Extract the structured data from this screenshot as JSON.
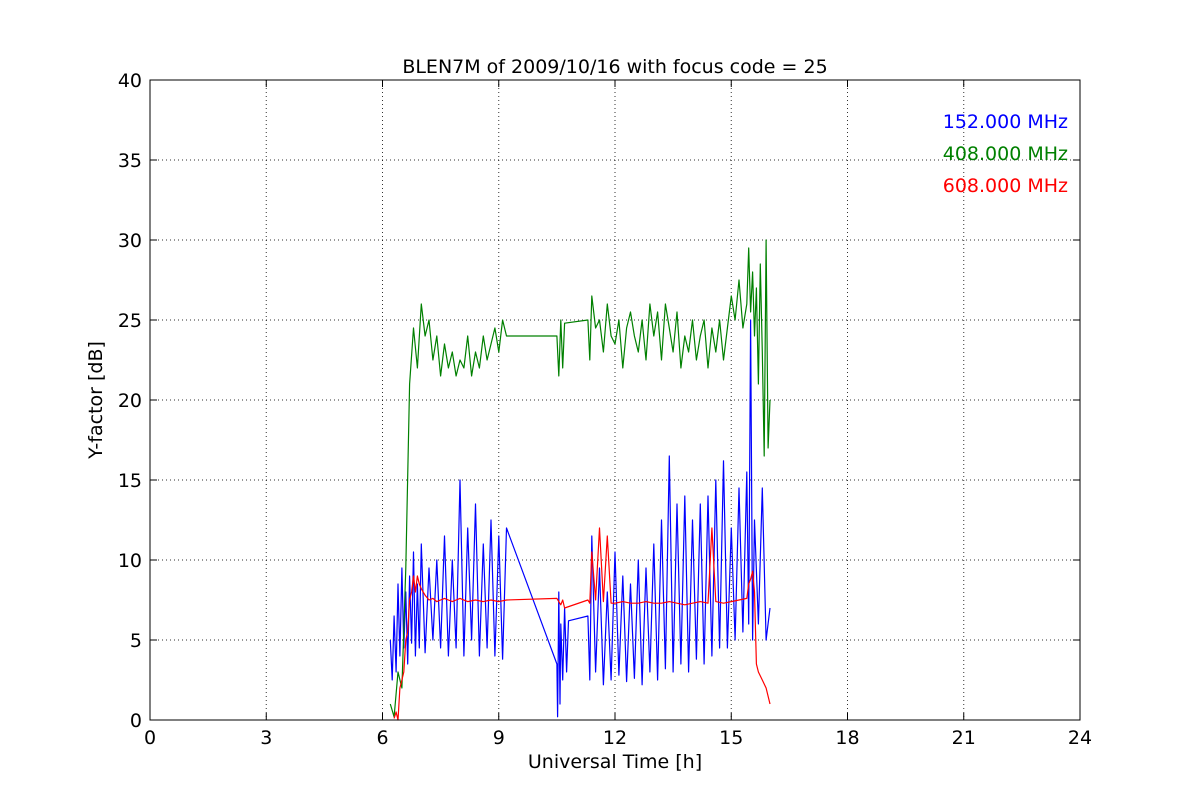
{
  "chart_data": {
    "type": "line",
    "title": "BLEN7M of 2009/10/16 with focus code = 25",
    "xlabel": "Universal Time [h]",
    "ylabel": "Y-factor [dB]",
    "xlim": [
      0,
      24
    ],
    "ylim": [
      0,
      40
    ],
    "xticks": [
      0,
      3,
      6,
      9,
      12,
      15,
      18,
      21,
      24
    ],
    "yticks": [
      0,
      5,
      10,
      15,
      20,
      25,
      30,
      35,
      40
    ],
    "grid": true,
    "legend_placement": "top-right",
    "series": [
      {
        "name": "152.000 MHz",
        "color": "#0000ff",
        "x": [
          6.2,
          6.25,
          6.3,
          6.35,
          6.4,
          6.45,
          6.5,
          6.55,
          6.6,
          6.65,
          6.7,
          6.75,
          6.8,
          6.85,
          6.9,
          6.95,
          7.0,
          7.1,
          7.2,
          7.3,
          7.4,
          7.5,
          7.6,
          7.7,
          7.8,
          7.9,
          8.0,
          8.1,
          8.2,
          8.3,
          8.4,
          8.5,
          8.6,
          8.7,
          8.8,
          8.9,
          9.0,
          9.1,
          9.2,
          10.5,
          10.52,
          10.55,
          10.58,
          10.6,
          10.65,
          10.7,
          10.75,
          10.8,
          11.3,
          11.35,
          11.4,
          11.5,
          11.6,
          11.7,
          11.8,
          11.9,
          12.0,
          12.1,
          12.2,
          12.3,
          12.4,
          12.5,
          12.6,
          12.7,
          12.8,
          12.9,
          13.0,
          13.1,
          13.2,
          13.3,
          13.4,
          13.5,
          13.6,
          13.7,
          13.8,
          13.9,
          14.0,
          14.1,
          14.2,
          14.3,
          14.4,
          14.5,
          14.6,
          14.7,
          14.8,
          14.9,
          15.0,
          15.1,
          15.2,
          15.3,
          15.4,
          15.45,
          15.5,
          15.55,
          15.6,
          15.7,
          15.8,
          15.9,
          16.0
        ],
        "values": [
          5.0,
          2.5,
          6.5,
          3.0,
          8.5,
          4.0,
          9.5,
          4.5,
          8.0,
          3.5,
          9.0,
          4.8,
          10.5,
          4.0,
          8.5,
          4.5,
          11.0,
          4.2,
          9.5,
          5.0,
          10.0,
          4.5,
          11.5,
          4.0,
          10.0,
          4.5,
          15.0,
          4.0,
          12.0,
          5.0,
          13.5,
          4.0,
          11.0,
          4.5,
          12.5,
          4.0,
          11.5,
          3.8,
          12.0,
          3.5,
          0.2,
          8.0,
          1.0,
          6.0,
          2.5,
          7.0,
          3.0,
          6.2,
          6.5,
          2.5,
          11.5,
          3.0,
          9.5,
          2.2,
          8.0,
          2.5,
          10.5,
          2.8,
          9.0,
          2.4,
          8.5,
          2.6,
          10.0,
          2.2,
          9.5,
          3.0,
          11.0,
          2.5,
          12.5,
          3.2,
          16.5,
          3.0,
          13.5,
          3.5,
          14.0,
          3.0,
          12.5,
          3.8,
          13.5,
          3.5,
          14.0,
          4.0,
          15.0,
          4.5,
          16.2,
          4.5,
          12.0,
          5.0,
          14.5,
          5.5,
          15.5,
          6.0,
          25.0,
          5.0,
          12.5,
          6.0,
          14.5,
          5.0,
          7.0
        ]
      },
      {
        "name": "408.000 MHz",
        "color": "#008000",
        "x": [
          6.2,
          6.3,
          6.4,
          6.5,
          6.6,
          6.7,
          6.8,
          6.9,
          7.0,
          7.1,
          7.2,
          7.3,
          7.4,
          7.5,
          7.6,
          7.7,
          7.8,
          7.9,
          8.0,
          8.1,
          8.2,
          8.3,
          8.4,
          8.5,
          8.6,
          8.7,
          8.8,
          8.9,
          9.0,
          9.1,
          9.2,
          10.5,
          10.55,
          10.6,
          10.65,
          10.7,
          11.3,
          11.35,
          11.4,
          11.5,
          11.6,
          11.7,
          11.8,
          11.9,
          12.0,
          12.1,
          12.2,
          12.3,
          12.4,
          12.5,
          12.6,
          12.7,
          12.8,
          12.9,
          13.0,
          13.1,
          13.2,
          13.3,
          13.4,
          13.5,
          13.6,
          13.7,
          13.8,
          13.9,
          14.0,
          14.1,
          14.2,
          14.3,
          14.4,
          14.5,
          14.6,
          14.7,
          14.8,
          14.9,
          15.0,
          15.1,
          15.2,
          15.3,
          15.4,
          15.45,
          15.5,
          15.55,
          15.6,
          15.65,
          15.7,
          15.75,
          15.8,
          15.85,
          15.9,
          15.95,
          16.0
        ],
        "values": [
          1.0,
          0.2,
          3.0,
          2.0,
          9.5,
          21.0,
          24.5,
          22.0,
          26.0,
          24.0,
          25.0,
          22.5,
          24.0,
          21.5,
          23.5,
          22.0,
          23.0,
          21.5,
          22.5,
          22.0,
          24.0,
          21.5,
          23.0,
          22.0,
          24.0,
          22.5,
          23.5,
          24.5,
          23.0,
          25.0,
          24.0,
          24.0,
          21.5,
          25.0,
          22.0,
          24.8,
          25.0,
          22.5,
          26.5,
          24.5,
          25.0,
          23.0,
          26.0,
          24.0,
          23.5,
          25.0,
          22.0,
          24.5,
          25.5,
          24.0,
          23.0,
          25.0,
          22.5,
          26.0,
          24.0,
          25.5,
          22.5,
          26.0,
          24.5,
          23.0,
          25.5,
          22.0,
          24.0,
          23.0,
          25.0,
          22.5,
          24.0,
          25.0,
          22.0,
          24.5,
          23.0,
          25.0,
          22.5,
          24.5,
          26.5,
          25.0,
          27.5,
          24.5,
          26.0,
          29.5,
          25.5,
          28.0,
          24.0,
          27.0,
          21.0,
          28.5,
          23.0,
          16.5,
          30.0,
          17.0,
          20.0
        ]
      },
      {
        "name": "608.000 MHz",
        "color": "#ff0000",
        "x": [
          6.3,
          6.35,
          6.4,
          6.45,
          6.5,
          6.55,
          6.6,
          6.65,
          6.7,
          6.75,
          6.8,
          6.85,
          6.9,
          6.95,
          7.0,
          7.1,
          7.2,
          7.3,
          7.4,
          7.5,
          7.6,
          7.7,
          7.8,
          7.9,
          8.0,
          8.2,
          8.4,
          8.6,
          8.8,
          9.0,
          9.2,
          10.5,
          10.55,
          10.6,
          10.65,
          10.7,
          11.3,
          11.35,
          11.4,
          11.5,
          11.6,
          11.7,
          11.8,
          11.9,
          12.0,
          12.2,
          12.4,
          12.6,
          12.8,
          13.0,
          13.2,
          13.4,
          13.6,
          13.8,
          14.0,
          14.2,
          14.4,
          14.5,
          14.6,
          14.8,
          15.0,
          15.2,
          15.4,
          15.45,
          15.5,
          15.55,
          15.6,
          15.65,
          15.7,
          15.8,
          15.9,
          16.0
        ],
        "values": [
          0.1,
          0.5,
          0.0,
          2.0,
          2.5,
          3.0,
          5.0,
          5.5,
          7.5,
          8.0,
          9.0,
          8.0,
          9.0,
          8.5,
          8.2,
          7.8,
          7.5,
          7.6,
          7.4,
          7.5,
          7.6,
          7.5,
          7.4,
          7.5,
          7.6,
          7.4,
          7.5,
          7.4,
          7.5,
          7.4,
          7.5,
          7.6,
          7.4,
          7.2,
          7.5,
          7.0,
          7.5,
          7.3,
          10.5,
          7.5,
          12.0,
          7.4,
          11.5,
          7.3,
          7.3,
          7.4,
          7.3,
          7.3,
          7.4,
          7.3,
          7.3,
          7.4,
          7.3,
          7.2,
          7.3,
          7.4,
          7.3,
          12.0,
          7.4,
          7.3,
          7.4,
          7.5,
          7.6,
          8.5,
          8.8,
          9.3,
          8.0,
          3.5,
          3.0,
          2.5,
          2.0,
          1.0
        ]
      }
    ]
  }
}
